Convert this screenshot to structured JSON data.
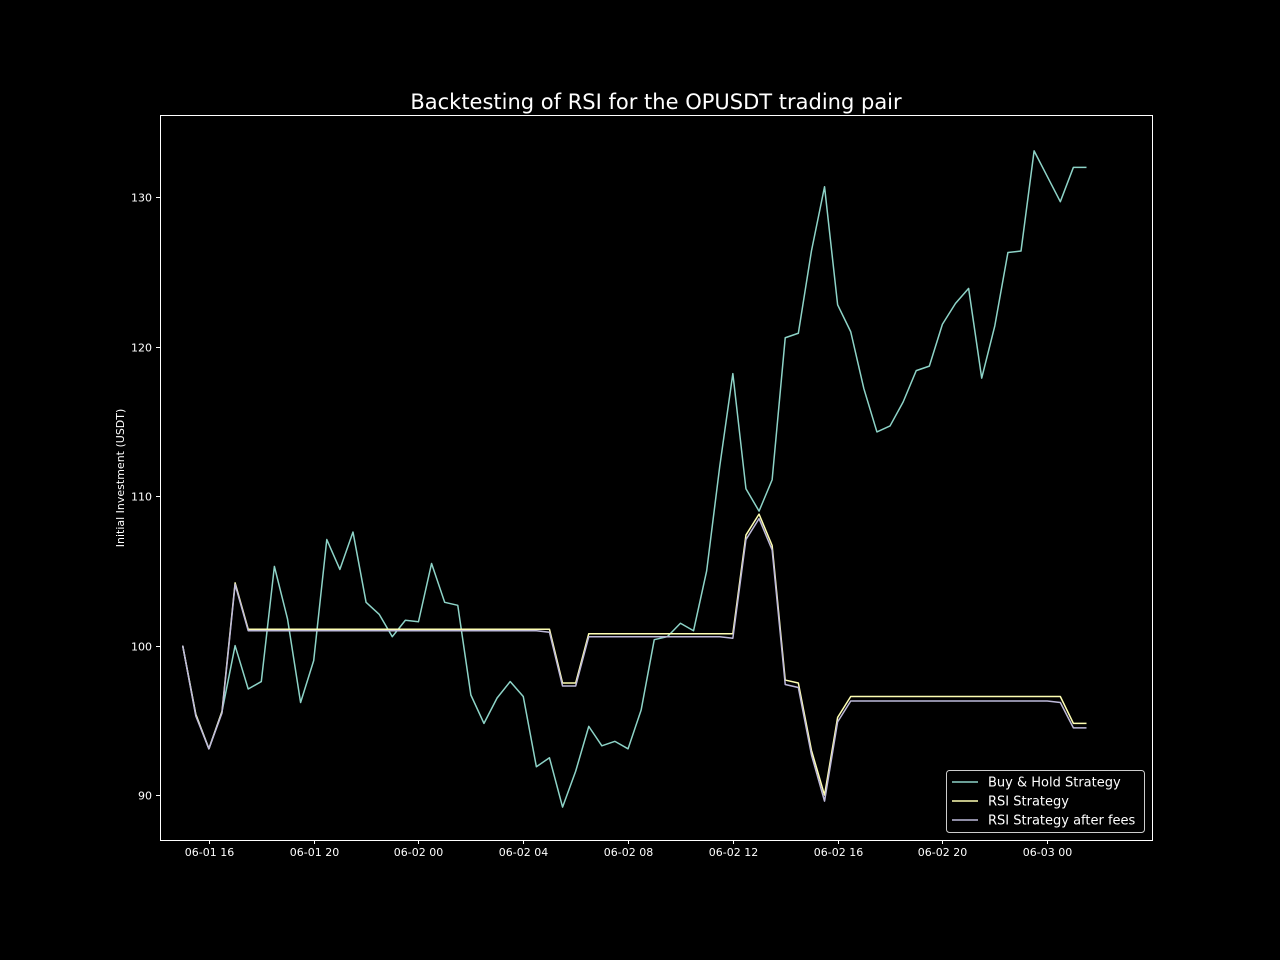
{
  "chart_data": {
    "type": "line",
    "title": "Backtesting of RSI for the OPUSDT trading pair",
    "xlabel": "",
    "ylabel": "Initial Investment (USDT)",
    "x_start": "2023-06-01 15:00",
    "x_step_minutes": 30,
    "xlim": [
      "2023-06-01 14:08",
      "2023-06-03 04:00"
    ],
    "ylim": [
      87.0,
      135.5
    ],
    "xticks": [
      {
        "t": "2023-06-01 16:00",
        "label": "06-01 16"
      },
      {
        "t": "2023-06-01 20:00",
        "label": "06-01 20"
      },
      {
        "t": "2023-06-02 00:00",
        "label": "06-02 00"
      },
      {
        "t": "2023-06-02 04:00",
        "label": "06-02 04"
      },
      {
        "t": "2023-06-02 08:00",
        "label": "06-02 08"
      },
      {
        "t": "2023-06-02 12:00",
        "label": "06-02 12"
      },
      {
        "t": "2023-06-02 16:00",
        "label": "06-02 16"
      },
      {
        "t": "2023-06-02 20:00",
        "label": "06-02 20"
      },
      {
        "t": "2023-06-03 00:00",
        "label": "06-03 00"
      }
    ],
    "yticks": [
      90,
      100,
      110,
      120,
      130
    ],
    "grid": false,
    "legend_position": "lower-right",
    "background": "#000000",
    "series": [
      {
        "name": "Buy & Hold Strategy",
        "color": "#8dd3c7",
        "values": [
          100.0,
          95.4,
          93.1,
          95.6,
          100.0,
          97.1,
          97.6,
          105.3,
          101.8,
          96.2,
          99.0,
          107.1,
          105.1,
          107.6,
          102.9,
          102.1,
          100.6,
          101.7,
          101.6,
          105.5,
          102.9,
          102.7,
          96.7,
          94.8,
          96.5,
          97.6,
          96.6,
          91.9,
          92.5,
          89.2,
          91.6,
          94.6,
          93.3,
          93.6,
          93.1,
          95.7,
          100.4,
          100.6,
          101.5,
          101.0,
          105.0,
          112.0,
          118.2,
          110.5,
          109.0,
          111.1,
          120.6,
          120.9,
          126.4,
          130.7,
          122.8,
          121.0,
          117.2,
          114.3,
          114.7,
          116.3,
          118.4,
          118.7,
          121.5,
          122.9,
          123.9,
          117.9,
          121.4,
          126.3,
          126.4,
          133.1,
          131.4,
          129.7,
          132.0,
          132.0
        ],
        "end_marker_note": null
      },
      {
        "name": "RSI Strategy",
        "color": "#ffffb3",
        "values": [
          100.0,
          95.4,
          93.1,
          95.6,
          104.2,
          101.1,
          101.1,
          101.1,
          101.1,
          101.1,
          101.1,
          101.1,
          101.1,
          101.1,
          101.1,
          101.1,
          101.1,
          101.1,
          101.1,
          101.1,
          101.1,
          101.1,
          101.1,
          101.1,
          101.1,
          101.1,
          101.1,
          101.1,
          101.1,
          97.5,
          97.5,
          100.8,
          100.8,
          100.8,
          100.8,
          100.8,
          100.8,
          100.8,
          100.8,
          100.8,
          100.8,
          100.8,
          100.8,
          107.4,
          108.8,
          106.7,
          97.7,
          97.5,
          93.0,
          90.0,
          95.2,
          96.6,
          96.6,
          96.6,
          96.6,
          96.6,
          96.6,
          96.6,
          96.6,
          96.6,
          96.6,
          96.6,
          96.6,
          96.6,
          96.6,
          96.6,
          96.6,
          96.6,
          94.8,
          94.8
        ]
      },
      {
        "name": "RSI Strategy after fees",
        "color": "#bebada",
        "values": [
          100.0,
          95.3,
          93.1,
          95.5,
          104.1,
          101.0,
          101.0,
          101.0,
          101.0,
          101.0,
          101.0,
          101.0,
          101.0,
          101.0,
          101.0,
          101.0,
          101.0,
          101.0,
          101.0,
          101.0,
          101.0,
          101.0,
          101.0,
          101.0,
          101.0,
          101.0,
          101.0,
          101.0,
          100.9,
          97.3,
          97.3,
          100.6,
          100.6,
          100.6,
          100.6,
          100.6,
          100.6,
          100.6,
          100.6,
          100.6,
          100.6,
          100.6,
          100.5,
          107.1,
          108.5,
          106.4,
          97.4,
          97.2,
          92.7,
          89.6,
          94.9,
          96.3,
          96.3,
          96.3,
          96.3,
          96.3,
          96.3,
          96.3,
          96.3,
          96.3,
          96.3,
          96.3,
          96.3,
          96.3,
          96.3,
          96.3,
          96.3,
          96.2,
          94.5,
          94.5
        ]
      }
    ]
  }
}
